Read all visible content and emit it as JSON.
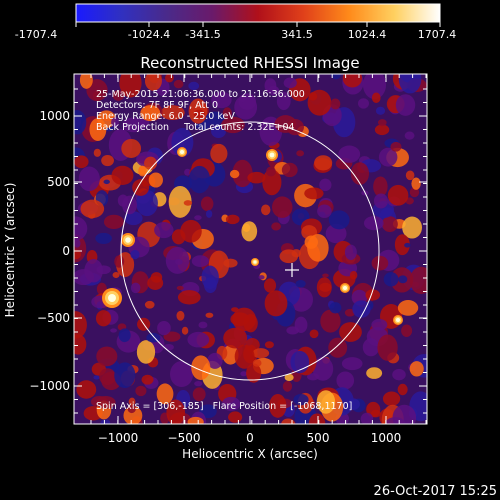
{
  "colorbar": {
    "ticks": [
      "-1707.4",
      "-1024.4",
      "-341.5",
      "341.5",
      "1024.4",
      "1707.4"
    ],
    "colors": [
      "#1a1aff",
      "#3030c0",
      "#4a2a8a",
      "#6a1a6a",
      "#b0101a",
      "#e0401a",
      "#ff8a1a",
      "#ffd060",
      "#ffffff"
    ]
  },
  "plot": {
    "title": "Reconstructed RHESSI Image",
    "xlabel": "Heliocentric X (arcsec)",
    "ylabel": "Heliocentric Y (arcsec)",
    "x_ticks": [
      "−1000",
      "−500",
      "0",
      "500",
      "1000"
    ],
    "y_ticks": [
      "−1000",
      "−500",
      "0",
      "500",
      "1000"
    ],
    "info_lines": [
      "25-May-2015 21:06:36.000 to 21:16:36.000",
      "Detectors: 7F 8F 9F, Att 0",
      "Energy Range: 6.0 - 25.0 keV",
      "Back Projection     Total counts: 2.32E+04"
    ],
    "footer_line": "Spin Axis = [306,-185]   Flare Position = [-1068,1170]",
    "circle_color": "#ffffff",
    "marker_color": "#ffffff"
  },
  "timestamp": "26-Oct-2017 15:25"
}
